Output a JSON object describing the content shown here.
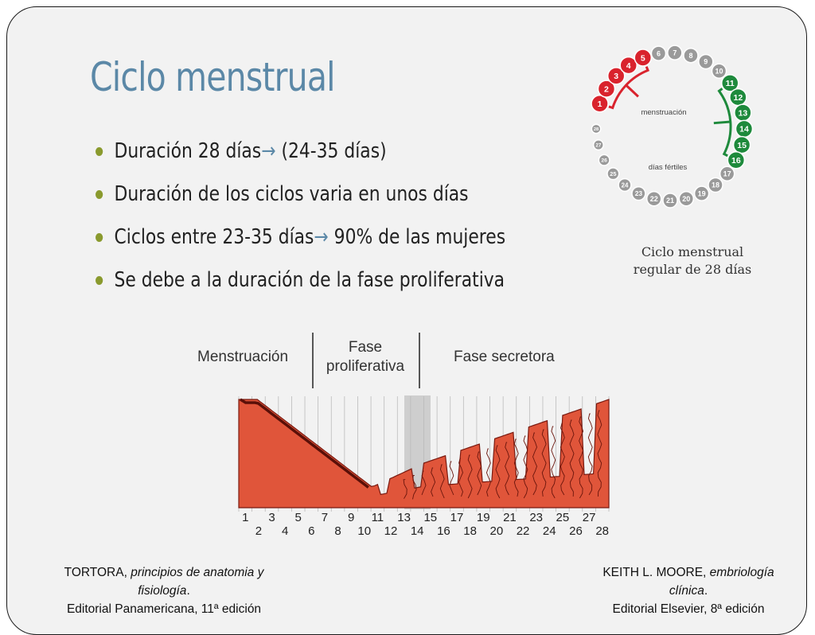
{
  "title": "Ciclo menstrual",
  "bullets": [
    {
      "prefix": "Duración 28 días",
      "arrow": "→",
      "suffix": " (24-35 días)"
    },
    {
      "prefix": "Duración de los ciclos varia en unos días",
      "arrow": "",
      "suffix": ""
    },
    {
      "prefix": "Ciclos entre 23-35 días",
      "arrow": "→",
      "suffix": " 90% de las mujeres"
    },
    {
      "prefix": "Se debe a la duración de la fase proliferativa",
      "arrow": "",
      "suffix": ""
    }
  ],
  "cycle_diagram": {
    "menstruation_label": "menstruación",
    "fertile_label": "días fértiles",
    "caption_line1": "Ciclo menstrual",
    "caption_line2": "regular de 28 días",
    "menstruation_days": [
      1,
      2,
      3,
      4,
      5
    ],
    "fertile_days": [
      11,
      12,
      13,
      14,
      15,
      16
    ],
    "menstruation_color": "#d9232d",
    "fertile_color": "#1e8a3c",
    "other_color": "#9a9a9a"
  },
  "endometrium_figure": {
    "phase_menstruation": "Menstruación",
    "phase_proliferative_1": "Fase",
    "phase_proliferative_2": "proliferativa",
    "phase_secretory": "Fase secretora",
    "odd_days": [
      "1",
      "3",
      "5",
      "7",
      "9",
      "11",
      "13",
      "15",
      "17",
      "19",
      "21",
      "23",
      "25",
      "27"
    ],
    "even_days": [
      "2",
      "4",
      "6",
      "8",
      "10",
      "12",
      "14",
      "16",
      "18",
      "20",
      "22",
      "24",
      "26",
      "28"
    ],
    "tissue_color": "#e0553a"
  },
  "references": {
    "left_author": "TORTORA, ",
    "left_work_1": "principios de anatomia y",
    "left_work_2": "fisiología",
    "left_line3": "Editorial Panamericana, 11ª edición",
    "right_author": "KEITH L. MOORE, ",
    "right_work_1": "embriología",
    "right_work_2": "clínica",
    "right_line3": "Editorial Elsevier, 8ª edición"
  }
}
